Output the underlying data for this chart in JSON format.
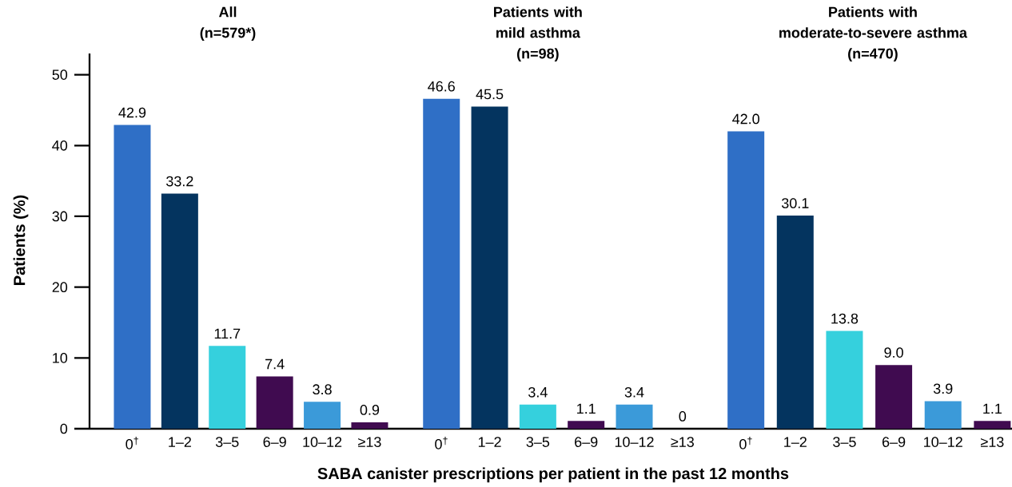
{
  "chart_data": [
    {
      "type": "bar",
      "title": "All",
      "subtitle": "(n=579*)",
      "ylabel": "Patients (%)",
      "categories": [
        "0$^{†}$",
        "1–2",
        "3–5",
        "6–9",
        "10–12",
        "≥13"
      ],
      "values": [
        42.9,
        33.2,
        11.7,
        7.4,
        3.8,
        0.9
      ],
      "value_labels": [
        "42.9",
        "33.2",
        "11.7",
        "7.4",
        "3.8",
        "0.9"
      ],
      "colors": [
        "#2f6fc6",
        "#04345f",
        "#35d0dd",
        "#400b50",
        "#3b9ad9",
        "#400b50"
      ],
      "ylim": [
        0,
        53
      ],
      "yticks": [
        0,
        10,
        20,
        30,
        40,
        50
      ]
    },
    {
      "type": "bar",
      "title": "Patients with mild asthma",
      "subtitle": "(n=98)",
      "xlabel": "SABA canister prescriptions per patient in the past 12 months",
      "categories": [
        "0$^{†}$",
        "1–2",
        "3–5",
        "6–9",
        "10–12",
        "≥13"
      ],
      "values": [
        46.6,
        45.5,
        3.4,
        1.1,
        3.4,
        0
      ],
      "value_labels": [
        "46.6",
        "45.5",
        "3.4",
        "1.1",
        "3.4",
        "0"
      ],
      "colors": [
        "#2f6fc6",
        "#04345f",
        "#35d0dd",
        "#400b50",
        "#3b9ad9",
        "#400b50"
      ],
      "tick_labels": "x"
    },
    {
      "type": "bar",
      "title": "Patients with moderate-to-severe asthma",
      "subtitle": "(n=470)",
      "categories": [
        "0$^{†}$",
        "1–2",
        "3–5",
        "6–9",
        "10–12",
        "≥13"
      ],
      "values": [
        42.0,
        30.1,
        13.8,
        9.0,
        3.9,
        1.1
      ],
      "value_labels": [
        "42.0",
        "30.1",
        "13.8",
        "9.0",
        "3.9",
        "1.1"
      ],
      "colors": [
        "#2f6fc6",
        "#04345f",
        "#35d0dd",
        "#400b50",
        "#3b9ad9",
        "#400b50"
      ],
      "tick_labels": "x"
    }
  ]
}
